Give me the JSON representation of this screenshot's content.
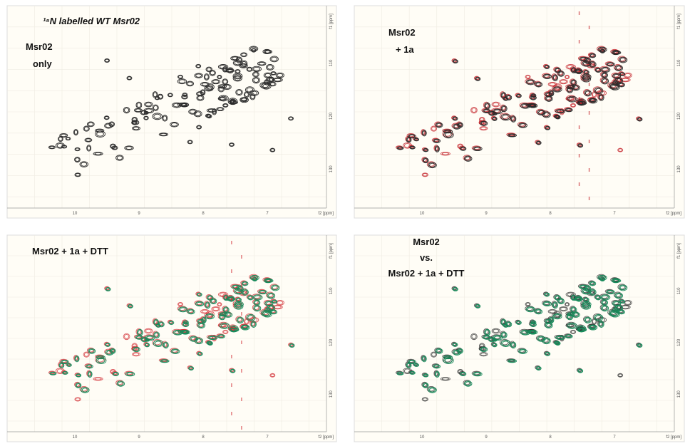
{
  "panels": [
    {
      "title": "¹⁵N labelled WT Msr02",
      "label": [
        "Msr02",
        "only"
      ],
      "contour_colors": [
        "#2b2b2b"
      ]
    },
    {
      "label": [
        "Msr02",
        "+ 1a"
      ],
      "contour_colors": [
        "#c0141c",
        "#2b2b2b"
      ]
    },
    {
      "label": [
        "Msr02 + 1a + DTT"
      ],
      "contour_colors": [
        "#d22a30",
        "#178a5a"
      ]
    },
    {
      "label": [
        "Msr02",
        "vs.",
        "Msr02 + 1a + DTT"
      ],
      "contour_colors": [
        "#2b2b2b",
        "#178a5a"
      ]
    }
  ],
  "axes": {
    "x_ticks": [
      "10",
      "9",
      "8",
      "7"
    ],
    "x_unit": "f2 [ppm]",
    "y_ticks": [
      "110",
      "120",
      "130"
    ],
    "y_unit": "f1 [ppm]"
  }
}
